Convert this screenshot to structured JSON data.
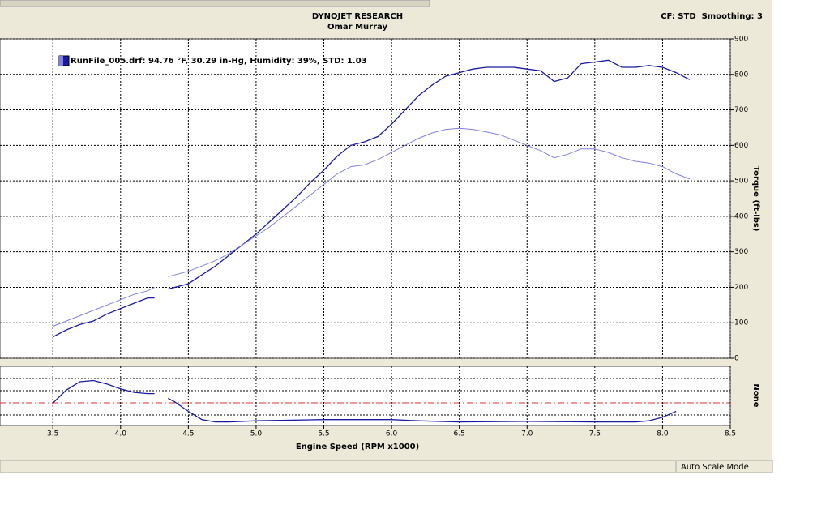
{
  "chart_data": [
    {
      "type": "line",
      "title": "DYNOJET RESEARCH",
      "subtitle": "Omar Murray",
      "annotation": "CF: STD  Smoothing: 3",
      "x_label": "Engine Speed (RPM x1000)",
      "y_label": "Torque (ft-lbs)",
      "grid": true,
      "legend": "top-left",
      "x": [
        3.5,
        3.6,
        3.7,
        3.8,
        3.9,
        4.0,
        4.1,
        4.2,
        4.25,
        4.3,
        4.35,
        4.5,
        4.6,
        4.7,
        4.8,
        4.9,
        5.0,
        5.1,
        5.2,
        5.3,
        5.4,
        5.5,
        5.6,
        5.7,
        5.8,
        5.9,
        6.0,
        6.1,
        6.2,
        6.3,
        6.4,
        6.5,
        6.6,
        6.7,
        6.8,
        6.9,
        7.0,
        7.1,
        7.2,
        7.3,
        7.4,
        7.5,
        7.6,
        7.7,
        7.8,
        7.9,
        8.0,
        8.1,
        8.2
      ],
      "series": [
        {
          "name": "RunFile_005.drf: 94.76 °F, 30.29 in-Hg, Humidity: 39%, STD: 1.03",
          "color": "#1a1aa0",
          "values": [
            60,
            80,
            95,
            105,
            125,
            140,
            155,
            170,
            170,
            null,
            195,
            210,
            235,
            260,
            290,
            320,
            350,
            385,
            420,
            455,
            495,
            530,
            570,
            600,
            610,
            625,
            660,
            700,
            740,
            770,
            795,
            805,
            815,
            820,
            820,
            820,
            815,
            810,
            780,
            790,
            830,
            835,
            840,
            820,
            820,
            825,
            820,
            805,
            785
          ]
        },
        {
          "color": "#8080e0",
          "values": [
            90,
            105,
            120,
            135,
            150,
            165,
            180,
            190,
            200,
            null,
            230,
            245,
            260,
            275,
            295,
            320,
            345,
            370,
            400,
            430,
            460,
            490,
            520,
            540,
            545,
            560,
            580,
            600,
            620,
            635,
            645,
            648,
            645,
            638,
            630,
            615,
            600,
            585,
            565,
            575,
            590,
            590,
            580,
            565,
            555,
            550,
            540,
            520,
            505
          ]
        }
      ],
      "xlim": [
        3.11,
        8.5
      ],
      "xticks": [
        3.5,
        {
          "value": 4,
          "label": "4.0"
        },
        4.5,
        {
          "value": 5,
          "label": "5.0"
        },
        5.5,
        {
          "value": 6,
          "label": "6.0"
        },
        6.5,
        {
          "value": 7,
          "label": "7.0"
        },
        7.5,
        {
          "value": 8,
          "label": "8.0"
        },
        8.5
      ],
      "ylim": [
        0,
        900
      ],
      "yticks": [
        0,
        100,
        200,
        300,
        400,
        500,
        600,
        700,
        800,
        900
      ]
    },
    {
      "type": "line",
      "y_label": "None",
      "x": [
        3.5,
        3.6,
        3.7,
        3.8,
        3.9,
        4.0,
        4.1,
        4.2,
        4.25,
        4.3,
        4.35,
        4.4,
        4.5,
        4.6,
        4.7,
        4.8,
        5.0,
        5.5,
        6.0,
        6.2,
        6.5,
        7.0,
        7.5,
        7.8,
        7.9,
        8.0,
        8.1
      ],
      "series": [
        {
          "color": "#1a1aa0",
          "values": [
            1.9,
            3.0,
            3.7,
            3.8,
            3.5,
            3.1,
            2.8,
            2.7,
            2.7,
            null,
            2.3,
            2.0,
            1.2,
            0.5,
            0.3,
            0.3,
            0.4,
            0.5,
            0.5,
            0.4,
            0.3,
            0.35,
            0.3,
            0.3,
            0.4,
            0.7,
            1.2
          ]
        }
      ],
      "xlim": [
        3.11,
        8.5
      ],
      "ylim": [
        0,
        5
      ]
    }
  ],
  "status_bar": {
    "text": "Auto Scale Mode"
  }
}
